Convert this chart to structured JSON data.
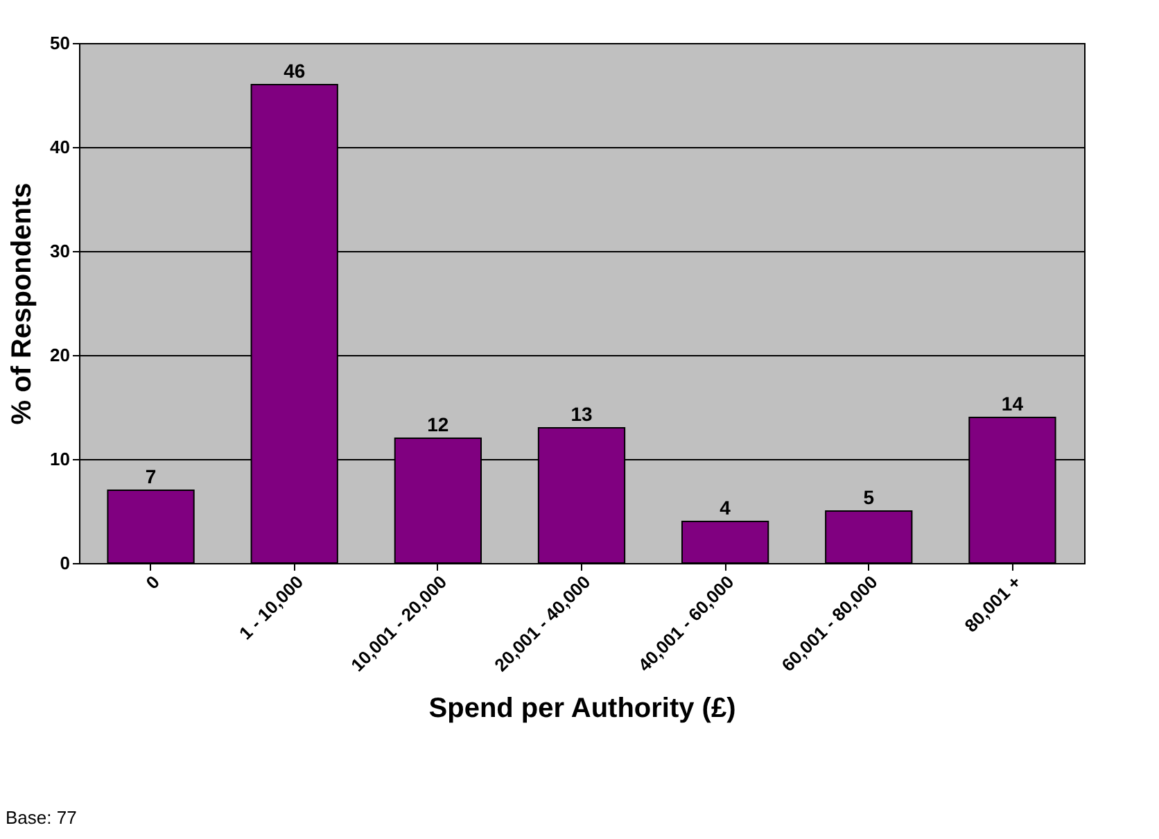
{
  "chart_data": {
    "type": "bar",
    "xlabel": "Spend per Authority (£)",
    "ylabel": "% of Respondents",
    "categories": [
      "0",
      "1 - 10,000",
      "10,001 - 20,000",
      "20,001 - 40,000",
      "40,001 - 60,000",
      "60,001 - 80,000",
      "80,001 +"
    ],
    "values": [
      7,
      46,
      12,
      13,
      4,
      5,
      14
    ],
    "color": "#800080",
    "ylim": [
      0,
      50
    ],
    "yticks": [
      0,
      10,
      20,
      30,
      40,
      50
    ],
    "grid": "y",
    "data_labels": true,
    "annotations": [
      "Base: 77"
    ]
  }
}
